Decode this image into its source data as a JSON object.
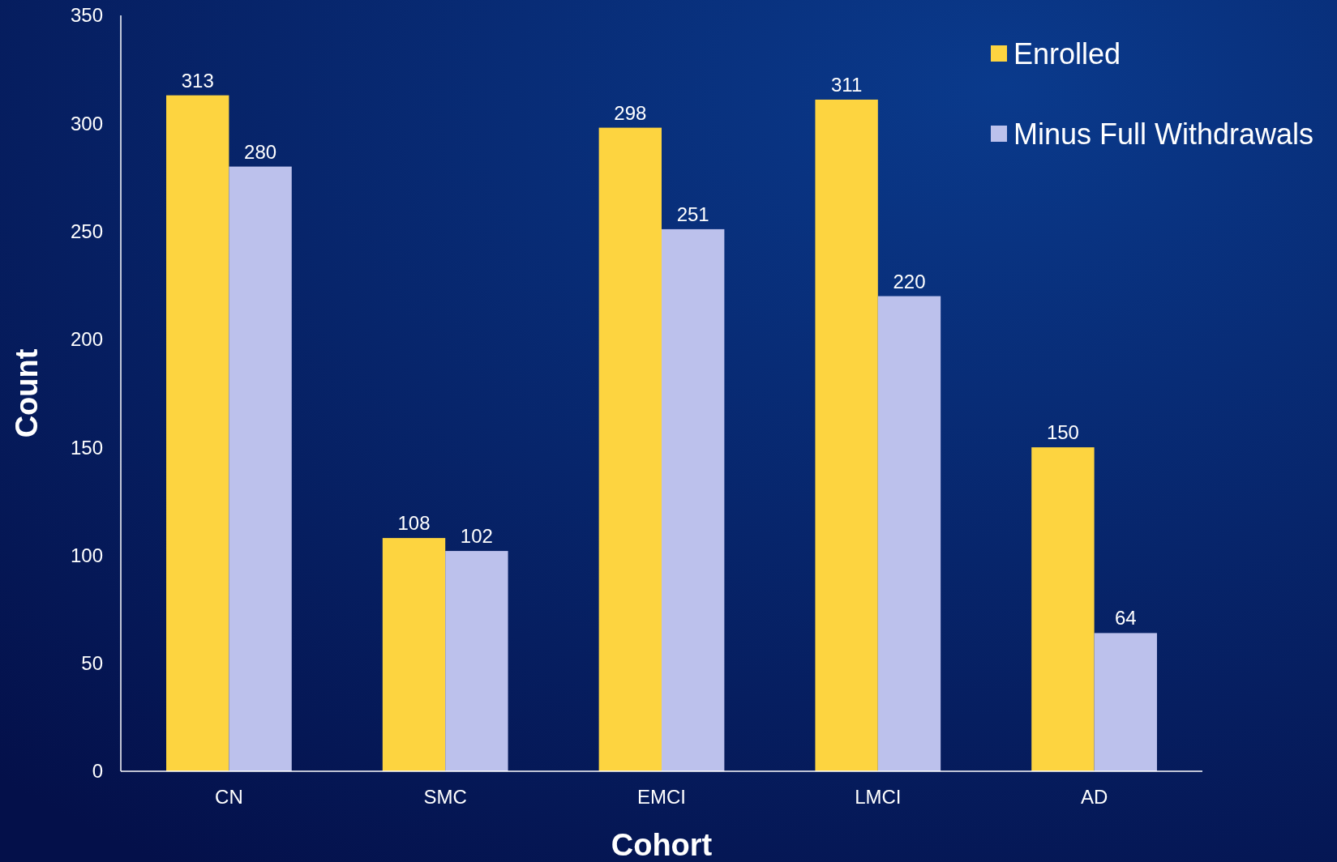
{
  "chart_data": {
    "type": "bar",
    "xlabel": "Cohort",
    "ylabel": "Count",
    "categories": [
      "CN",
      "SMC",
      "EMCI",
      "LMCI",
      "AD"
    ],
    "series": [
      {
        "name": "Enrolled",
        "color": "#fdd440",
        "values": [
          313,
          108,
          298,
          311,
          150
        ]
      },
      {
        "name": "Minus Full Withdrawals",
        "color": "#bcc1ec",
        "values": [
          280,
          102,
          251,
          220,
          64
        ]
      }
    ],
    "ylim": [
      0,
      350
    ],
    "yticks": [
      0,
      50,
      100,
      150,
      200,
      250,
      300,
      350
    ],
    "grid": false,
    "legend": "top right",
    "data_labels": true
  }
}
